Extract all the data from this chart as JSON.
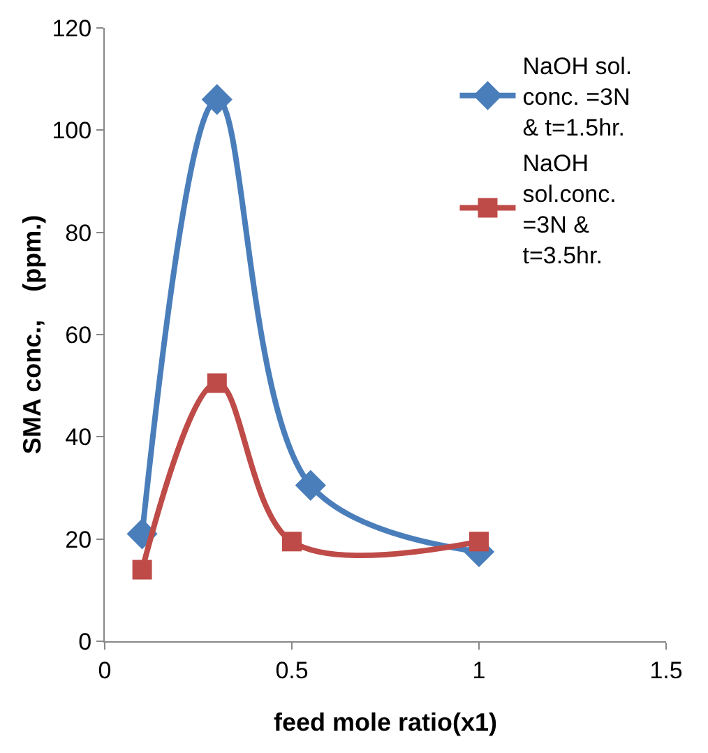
{
  "chart_data": {
    "type": "line",
    "xlabel": "feed mole ratio(x1)",
    "ylabel": "SMA conc.,    (ppm.)",
    "xlim": [
      0,
      1.5
    ],
    "xticks": [
      0,
      0.5,
      1,
      1.5
    ],
    "ylim": [
      0,
      120
    ],
    "yticks": [
      0,
      20,
      40,
      60,
      80,
      100,
      120
    ],
    "grid": false,
    "legend": "top right",
    "series": [
      {
        "name": "NaOH sol. conc. =3N & t=1.5hr.",
        "color": "#4a7ebb",
        "marker": "diamond",
        "x": [
          0.1,
          0.3,
          0.55,
          1
        ],
        "values": [
          21,
          106,
          30.5,
          17.5
        ]
      },
      {
        "name": "NaOH sol.conc. =3N & t=3.5hr.",
        "color": "#be4b48",
        "marker": "square",
        "x": [
          0.1,
          0.3,
          0.5,
          1
        ],
        "values": [
          14,
          50.5,
          19.5,
          19.5
        ]
      }
    ]
  }
}
